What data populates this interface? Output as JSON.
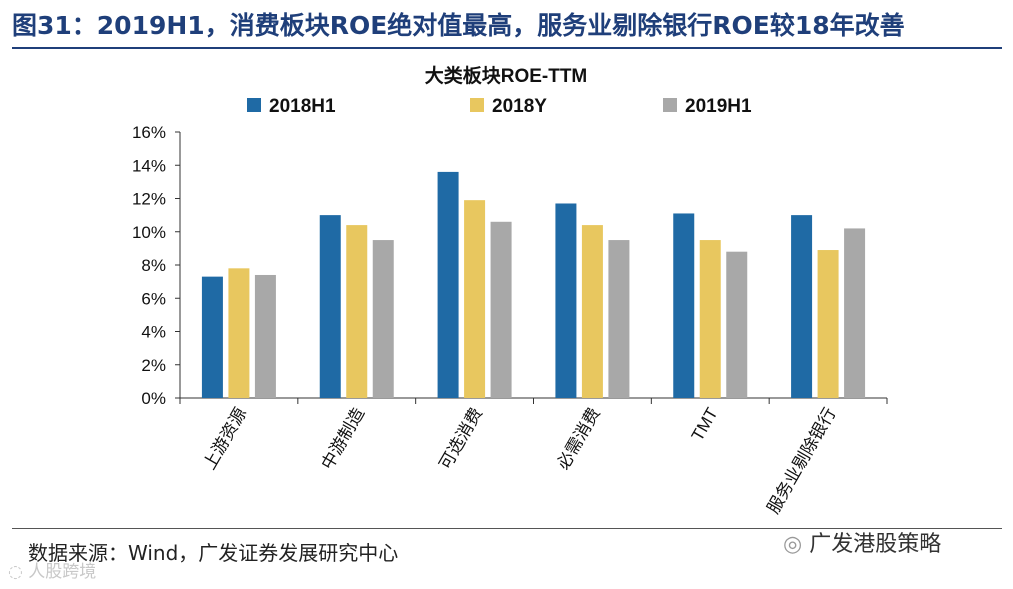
{
  "header": {
    "figure_title": "图31：2019H1，消费板块ROE绝对值最高，服务业剔除银行ROE较18年改善"
  },
  "footer": {
    "source": "数据来源：Wind，广发证券发展研究中心",
    "watermark_right": "广发港股策略",
    "watermark_left": "人股跨境"
  },
  "colors": {
    "title": "#1f3f7a",
    "series": [
      "#1f6aa5",
      "#e8c75f",
      "#a8a8a8"
    ]
  },
  "chart_data": {
    "type": "bar",
    "title": "大类板块ROE-TTM",
    "xlabel": "",
    "ylabel": "",
    "categories": [
      "上游资源",
      "中游制造",
      "可选消费",
      "必需消费",
      "TMT",
      "服务业剔除银行"
    ],
    "series": [
      {
        "name": "2018H1",
        "values": [
          7.3,
          11.0,
          13.6,
          11.7,
          11.1,
          11.0
        ]
      },
      {
        "name": "2018Y",
        "values": [
          7.8,
          10.4,
          11.9,
          10.4,
          9.5,
          8.9
        ]
      },
      {
        "name": "2019H1",
        "values": [
          7.4,
          9.5,
          10.6,
          9.5,
          8.8,
          10.2
        ]
      }
    ],
    "ylim": [
      0,
      16
    ],
    "yticks": [
      "0%",
      "2%",
      "4%",
      "6%",
      "8%",
      "10%",
      "12%",
      "14%",
      "16%"
    ],
    "legend_position": "top",
    "grid": false
  }
}
